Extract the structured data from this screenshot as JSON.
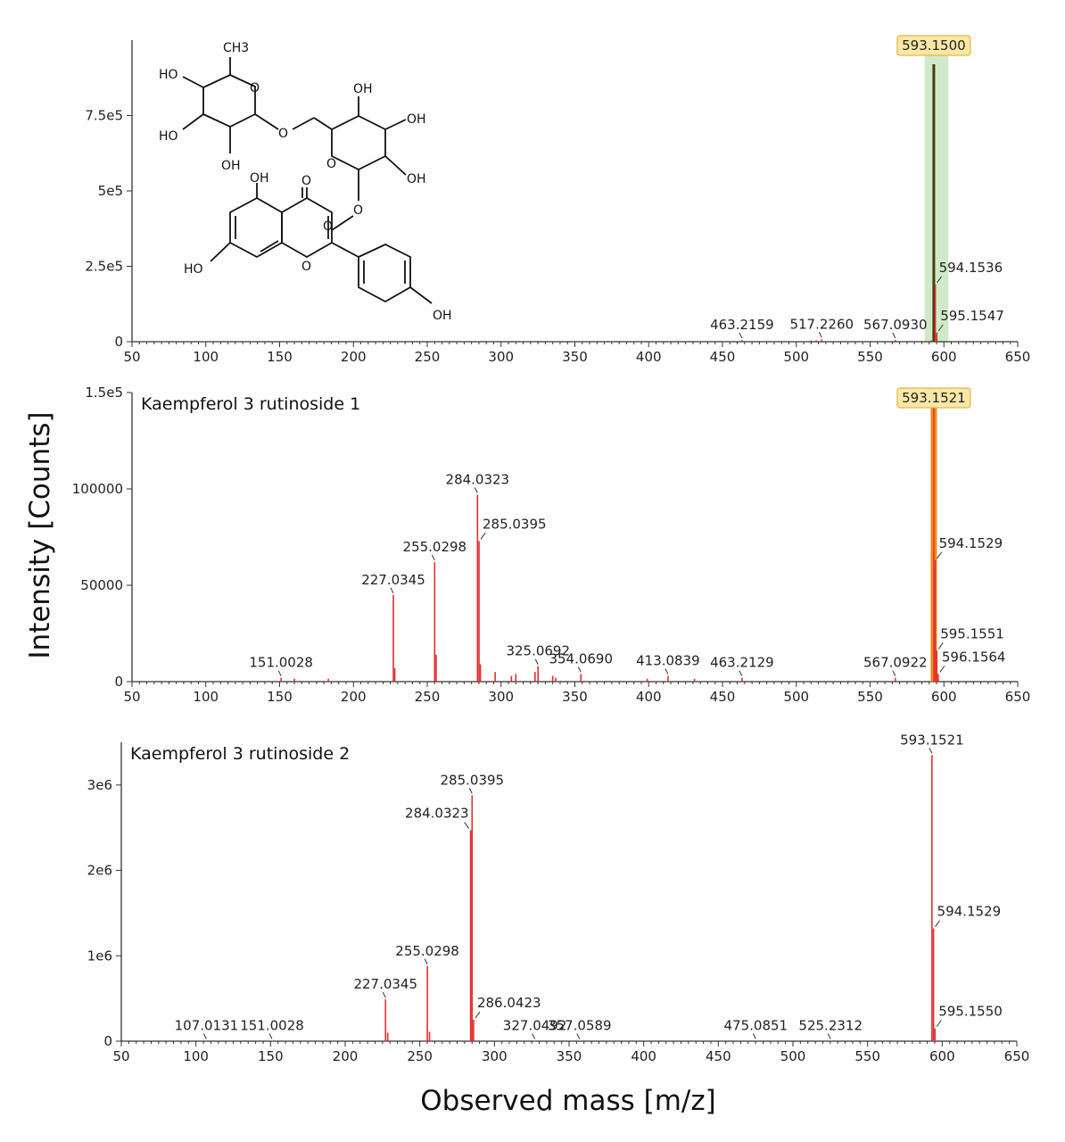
{
  "figure": {
    "ylabel": "Intensity [Counts]",
    "xlabel": "Observed mass [m/z]"
  },
  "structure": {
    "labels": [
      "CH3",
      "HO",
      "HO",
      "OH",
      "OH",
      "OH",
      "OH",
      "O",
      "O",
      "O",
      "O",
      "O",
      "OH",
      "O",
      "HO",
      "O",
      "OH"
    ]
  },
  "colors": {
    "peak": "#e03030",
    "peak_dark": "#4a3a10",
    "highlight_orange": "#f08a1e",
    "highlight_green": "#c8e6c0",
    "label_box_fill": "#fbe7a6",
    "label_box_stroke": "#e2b54a",
    "axis": "#333333"
  },
  "chart_data": [
    {
      "type": "bar",
      "title": "",
      "xlabel": "Observed mass [m/z]",
      "ylabel": "Intensity [Counts]",
      "xlim": [
        50,
        650
      ],
      "ylim": [
        0,
        1000000
      ],
      "xticks": [
        50,
        100,
        150,
        200,
        250,
        300,
        350,
        400,
        450,
        500,
        550,
        600,
        650
      ],
      "yticks": [
        0,
        250000,
        500000,
        750000
      ],
      "ytick_labels": [
        "0",
        "2.5e5",
        "5e5",
        "7.5e5"
      ],
      "highlight_band": [
        587,
        603
      ],
      "highlight_mz": 593.15,
      "highlight_label": "593.1500",
      "peaks": [
        {
          "mz": 593.15,
          "intensity": 920000,
          "label": null,
          "dark": true
        },
        {
          "mz": 594.1536,
          "intensity": 190000,
          "label": "594.1536",
          "label_pos": "right"
        },
        {
          "mz": 595.1547,
          "intensity": 30000,
          "label": "595.1547",
          "label_pos": "right"
        },
        {
          "mz": 463.2159,
          "intensity": 6000,
          "label": "463.2159",
          "label_pos": "above"
        },
        {
          "mz": 517.226,
          "intensity": 8000,
          "label": "517.2260",
          "label_pos": "above"
        },
        {
          "mz": 567.093,
          "intensity": 6000,
          "label": "567.0930",
          "label_pos": "above"
        },
        {
          "mz": 510.0,
          "intensity": 4000,
          "label": null
        },
        {
          "mz": 513.5,
          "intensity": 5000,
          "label": null
        },
        {
          "mz": 591.5,
          "intensity": 4000,
          "label": null
        }
      ]
    },
    {
      "type": "bar",
      "title": "Kaempferol 3 rutinoside 1",
      "xlabel": "Observed mass [m/z]",
      "ylabel": "Intensity [Counts]",
      "xlim": [
        50,
        650
      ],
      "ylim": [
        0,
        150000
      ],
      "xticks": [
        50,
        100,
        150,
        200,
        250,
        300,
        350,
        400,
        450,
        500,
        550,
        600,
        650
      ],
      "yticks": [
        0,
        50000,
        100000,
        150000
      ],
      "ytick_labels": [
        "0",
        "50000",
        "100000",
        "1.5e5"
      ],
      "highlight_mz": 593.1521,
      "highlight_label": "593.1521",
      "peaks": [
        {
          "mz": 593.1521,
          "intensity": 150000,
          "label": null,
          "highlight": true
        },
        {
          "mz": 594.1529,
          "intensity": 63000,
          "label": "594.1529",
          "label_pos": "right"
        },
        {
          "mz": 595.1551,
          "intensity": 16000,
          "label": "595.1551",
          "label_pos": "right"
        },
        {
          "mz": 596.1564,
          "intensity": 4000,
          "label": "596.1564",
          "label_pos": "right"
        },
        {
          "mz": 284.0323,
          "intensity": 97000,
          "label": "284.0323",
          "label_pos": "above"
        },
        {
          "mz": 285.0395,
          "intensity": 73000,
          "label": "285.0395",
          "label_pos": "right"
        },
        {
          "mz": 255.0298,
          "intensity": 62000,
          "label": "255.0298",
          "label_pos": "above"
        },
        {
          "mz": 227.0345,
          "intensity": 45000,
          "label": "227.0345",
          "label_pos": "above"
        },
        {
          "mz": 151.0028,
          "intensity": 2000,
          "label": "151.0028",
          "label_pos": "above"
        },
        {
          "mz": 325.0692,
          "intensity": 8000,
          "label": "325.0692",
          "label_pos": "above"
        },
        {
          "mz": 354.069,
          "intensity": 4000,
          "label": "354.0690",
          "label_pos": "above"
        },
        {
          "mz": 413.0839,
          "intensity": 3000,
          "label": "413.0839",
          "label_pos": "above"
        },
        {
          "mz": 463.2129,
          "intensity": 2000,
          "label": "463.2129",
          "label_pos": "above"
        },
        {
          "mz": 567.0922,
          "intensity": 2000,
          "label": "567.0922",
          "label_pos": "above"
        },
        {
          "mz": 228.0,
          "intensity": 7000,
          "label": null
        },
        {
          "mz": 256.0,
          "intensity": 14000,
          "label": null
        },
        {
          "mz": 286.0,
          "intensity": 9000,
          "label": null
        },
        {
          "mz": 296.0,
          "intensity": 5000,
          "label": null
        },
        {
          "mz": 307.0,
          "intensity": 3000,
          "label": null
        },
        {
          "mz": 310.0,
          "intensity": 4000,
          "label": null
        },
        {
          "mz": 323.0,
          "intensity": 5000,
          "label": null
        },
        {
          "mz": 335.0,
          "intensity": 3000,
          "label": null
        },
        {
          "mz": 337.0,
          "intensity": 2000,
          "label": null
        },
        {
          "mz": 160.0,
          "intensity": 1500,
          "label": null
        },
        {
          "mz": 183.0,
          "intensity": 1500,
          "label": null
        },
        {
          "mz": 399.0,
          "intensity": 1500,
          "label": null
        },
        {
          "mz": 431.0,
          "intensity": 1500,
          "label": null
        }
      ]
    },
    {
      "type": "bar",
      "title": "Kaempferol 3 rutinoside 2",
      "xlabel": "Observed mass [m/z]",
      "ylabel": "Intensity [Counts]",
      "xlim": [
        50,
        650
      ],
      "ylim": [
        0,
        3500000
      ],
      "xticks": [
        50,
        100,
        150,
        200,
        250,
        300,
        350,
        400,
        450,
        500,
        550,
        600,
        650
      ],
      "yticks": [
        0,
        1000000,
        2000000,
        3000000
      ],
      "ytick_labels": [
        "0",
        "1e6",
        "2e6",
        "3e6"
      ],
      "peaks": [
        {
          "mz": 593.1521,
          "intensity": 3350000,
          "label": "593.1521",
          "label_pos": "above"
        },
        {
          "mz": 594.1529,
          "intensity": 1320000,
          "label": "594.1529",
          "label_pos": "right"
        },
        {
          "mz": 595.155,
          "intensity": 150000,
          "label": "595.1550",
          "label_pos": "right"
        },
        {
          "mz": 285.0395,
          "intensity": 2880000,
          "label": "285.0395",
          "label_pos": "above"
        },
        {
          "mz": 284.0323,
          "intensity": 2470000,
          "label": "284.0323",
          "label_pos": "left"
        },
        {
          "mz": 286.0423,
          "intensity": 250000,
          "label": "286.0423",
          "label_pos": "right"
        },
        {
          "mz": 255.0298,
          "intensity": 880000,
          "label": "255.0298",
          "label_pos": "above"
        },
        {
          "mz": 227.0345,
          "intensity": 490000,
          "label": "227.0345",
          "label_pos": "above"
        },
        {
          "mz": 107.0131,
          "intensity": 5000,
          "label": "107.0131",
          "label_pos": "above"
        },
        {
          "mz": 151.0028,
          "intensity": 5000,
          "label": "151.0028",
          "label_pos": "above"
        },
        {
          "mz": 327.0492,
          "intensity": 5000,
          "label": "327.0492",
          "label_pos": "above"
        },
        {
          "mz": 357.0589,
          "intensity": 5000,
          "label": "357.0589",
          "label_pos": "above"
        },
        {
          "mz": 475.0851,
          "intensity": 5000,
          "label": "475.0851",
          "label_pos": "above"
        },
        {
          "mz": 525.2312,
          "intensity": 5000,
          "label": "525.2312",
          "label_pos": "above"
        },
        {
          "mz": 228.5,
          "intensity": 100000,
          "label": null
        },
        {
          "mz": 256.5,
          "intensity": 110000,
          "label": null
        }
      ]
    }
  ]
}
